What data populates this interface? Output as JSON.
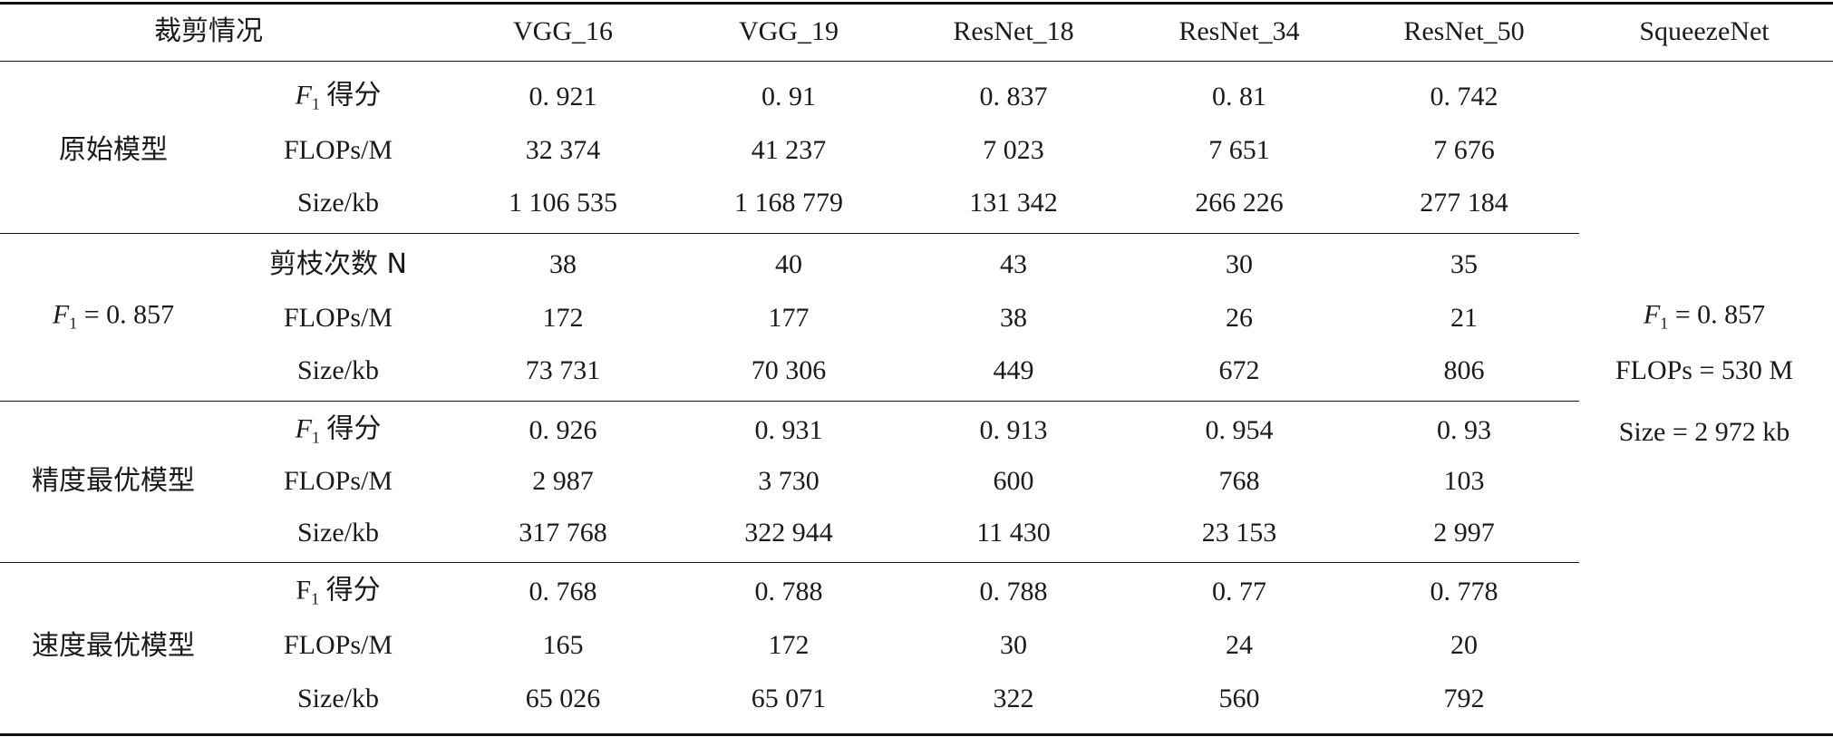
{
  "header": {
    "corner": "裁剪情况",
    "models": [
      "VGG_16",
      "VGG_19",
      "ResNet_18",
      "ResNet_34",
      "ResNet_50",
      "SqueezeNet"
    ]
  },
  "groups": [
    {
      "name": "原始模型",
      "rows": [
        {
          "metric": "F1 得分",
          "values": [
            "0. 921",
            "0. 91",
            "0. 837",
            "0. 81",
            "0. 742"
          ]
        },
        {
          "metric": "FLOPs/M",
          "values": [
            "32 374",
            "41 237",
            "7 023",
            "7 651",
            "7 676"
          ]
        },
        {
          "metric": "Size/kb",
          "values": [
            "1 106 535",
            "1 168 779",
            "131 342",
            "266 226",
            "277 184"
          ]
        }
      ]
    },
    {
      "name": "F1 = 0. 857",
      "rows": [
        {
          "metric": "剪枝次数 N",
          "values": [
            "38",
            "40",
            "43",
            "30",
            "35"
          ]
        },
        {
          "metric": "FLOPs/M",
          "values": [
            "172",
            "177",
            "38",
            "26",
            "21"
          ]
        },
        {
          "metric": "Size/kb",
          "values": [
            "73 731",
            "70 306",
            "449",
            "672",
            "806"
          ]
        }
      ]
    },
    {
      "name": "精度最优模型",
      "rows": [
        {
          "metric": "F1 得分",
          "values": [
            "0. 926",
            "0. 931",
            "0. 913",
            "0. 954",
            "0. 93"
          ]
        },
        {
          "metric": "FLOPs/M",
          "values": [
            "2 987",
            "3 730",
            "600",
            "768",
            "103"
          ]
        },
        {
          "metric": "Size/kb",
          "values": [
            "317 768",
            "322 944",
            "11 430",
            "23 153",
            "2 997"
          ]
        }
      ]
    },
    {
      "name": "速度最优模型",
      "rows": [
        {
          "metric": "F1 得分",
          "values": [
            "0. 768",
            "0. 788",
            "0. 788",
            "0. 77",
            "0. 778"
          ]
        },
        {
          "metric": "FLOPs/M",
          "values": [
            "165",
            "172",
            "30",
            "24",
            "20"
          ]
        },
        {
          "metric": "Size/kb",
          "values": [
            "65 026",
            "65 071",
            "322",
            "560",
            "792"
          ]
        }
      ]
    }
  ],
  "squeezenet": {
    "f1": "F1 = 0. 857",
    "flops": "FLOPs = 530 M",
    "size": "Size = 2 972 kb"
  }
}
